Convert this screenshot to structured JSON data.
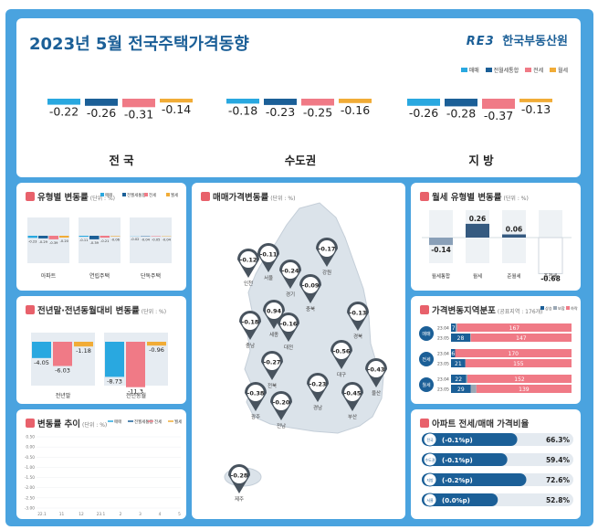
{
  "header": {
    "title": "2023년 5월 전국주택가격동향",
    "logo_mark": "RE3",
    "logo_text": "한국부동산원"
  },
  "colors": {
    "sale": "#29a8e0",
    "composite": "#1b5f97",
    "jeonse": "#f07a86",
    "monthly": "#f1ac37"
  },
  "legend": [
    "매매",
    "전월세통합",
    "전세",
    "월세"
  ],
  "summary": [
    {
      "region": "전 국",
      "values": [
        "-0.22",
        "-0.26",
        "-0.31",
        "-0.14"
      ]
    },
    {
      "region": "수도권",
      "values": [
        "-0.18",
        "-0.23",
        "-0.25",
        "-0.16"
      ]
    },
    {
      "region": "지 방",
      "values": [
        "-0.26",
        "-0.28",
        "-0.37",
        "-0.13"
      ]
    }
  ],
  "type_change": {
    "title": "유형별 변동률",
    "unit": "(단위 : %)",
    "legend": [
      "매매",
      "전월세통합",
      "전세",
      "월세"
    ],
    "groups": [
      {
        "label": "아파트",
        "values": [
          "-0.23",
          "-0.29",
          "-0.39",
          "-0.20"
        ]
      },
      {
        "label": "연립주택",
        "values": [
          "-0.11",
          "-0.39",
          "-0.21",
          "-0.06"
        ]
      },
      {
        "label": "단독주택",
        "values": [
          "-0.02",
          "-0.04",
          "-0.05",
          "-0.04"
        ]
      }
    ]
  },
  "ytd": {
    "title": "전년말·전년동월대비 변동률",
    "unit": "(단위 : %)",
    "groups": [
      {
        "label": "전년말",
        "values": [
          "-4.05",
          "-6.03",
          "-1.18"
        ]
      },
      {
        "label": "전년동월",
        "values": [
          "-8.73",
          "-11.3",
          "-0.96"
        ]
      }
    ]
  },
  "trend": {
    "title": "변동률 추이",
    "unit": "(단위 : %)",
    "legend": [
      "매매",
      "전월세통합",
      "전세",
      "월세"
    ],
    "y_ticks": [
      "0.50",
      "0.00",
      "-0.50",
      "-1.00",
      "-1.50",
      "-2.00",
      "-2.50",
      "-3.00"
    ],
    "x_ticks": [
      "22.1",
      "11",
      "12",
      "23.1",
      "2",
      "3",
      "4",
      "5"
    ]
  },
  "map": {
    "title": "매매가격변동률",
    "unit": "(단위 : %)",
    "pins": [
      {
        "name": "인천",
        "value": "-0.12"
      },
      {
        "name": "서울",
        "value": "-0.11"
      },
      {
        "name": "경기",
        "value": "-0.24"
      },
      {
        "name": "강원",
        "value": "-0.17"
      },
      {
        "name": "충북",
        "value": "-0.09"
      },
      {
        "name": "세종",
        "value": "0.94"
      },
      {
        "name": "충남",
        "value": "-0.18"
      },
      {
        "name": "대전",
        "value": "-0.16"
      },
      {
        "name": "경북",
        "value": "-0.13"
      },
      {
        "name": "전북",
        "value": "-0.27"
      },
      {
        "name": "대구",
        "value": "-0.56"
      },
      {
        "name": "울산",
        "value": "-0.43"
      },
      {
        "name": "경남",
        "value": "-0.23"
      },
      {
        "name": "부산",
        "value": "-0.45"
      },
      {
        "name": "광주",
        "value": "-0.38"
      },
      {
        "name": "전남",
        "value": "-0.20"
      },
      {
        "name": "제주",
        "value": "-0.28"
      }
    ]
  },
  "monthly_type": {
    "title": "월세 유형별 변동률",
    "unit": "(단위 : %)",
    "items": [
      {
        "label": "월세통합",
        "value": -0.14,
        "text": "-0.14"
      },
      {
        "label": "월세",
        "value": 0.26,
        "text": "0.26"
      },
      {
        "label": "준월세",
        "value": 0.06,
        "text": "0.06"
      },
      {
        "label": "준전세",
        "value": -0.68,
        "text": "-0.68"
      }
    ]
  },
  "distribution": {
    "title": "가격변동지역분포",
    "unit": "(공표지역 : 176개)",
    "legend": [
      "상승",
      "보합",
      "하락"
    ],
    "rows": [
      {
        "type": "매매",
        "bars": [
          {
            "period": "23.04",
            "up": 7,
            "flat": 2,
            "down": 167
          },
          {
            "period": "23.05",
            "up": 28,
            "flat": 1,
            "down": 147
          }
        ]
      },
      {
        "type": "전세",
        "bars": [
          {
            "period": "23.04",
            "up": 6,
            "flat": 0,
            "down": 170
          },
          {
            "period": "23.05",
            "up": 21,
            "flat": 0,
            "down": 155
          }
        ]
      },
      {
        "type": "월세",
        "bars": [
          {
            "period": "23.04",
            "up": 22,
            "flat": 2,
            "down": 152
          },
          {
            "period": "23.05",
            "up": 29,
            "flat": 8,
            "down": 139
          }
        ]
      }
    ]
  },
  "ratio": {
    "title": "아파트 전세/매매 가격비율",
    "rows": [
      {
        "region": "전국",
        "change": "(-0.1%p)",
        "value": "66.3%"
      },
      {
        "region": "수도권",
        "change": "(-0.1%p)",
        "value": "59.4%"
      },
      {
        "region": "지방",
        "change": "(-0.2%p)",
        "value": "72.6%"
      },
      {
        "region": "서울",
        "change": "(0.0%p)",
        "value": "52.8%"
      }
    ]
  }
}
